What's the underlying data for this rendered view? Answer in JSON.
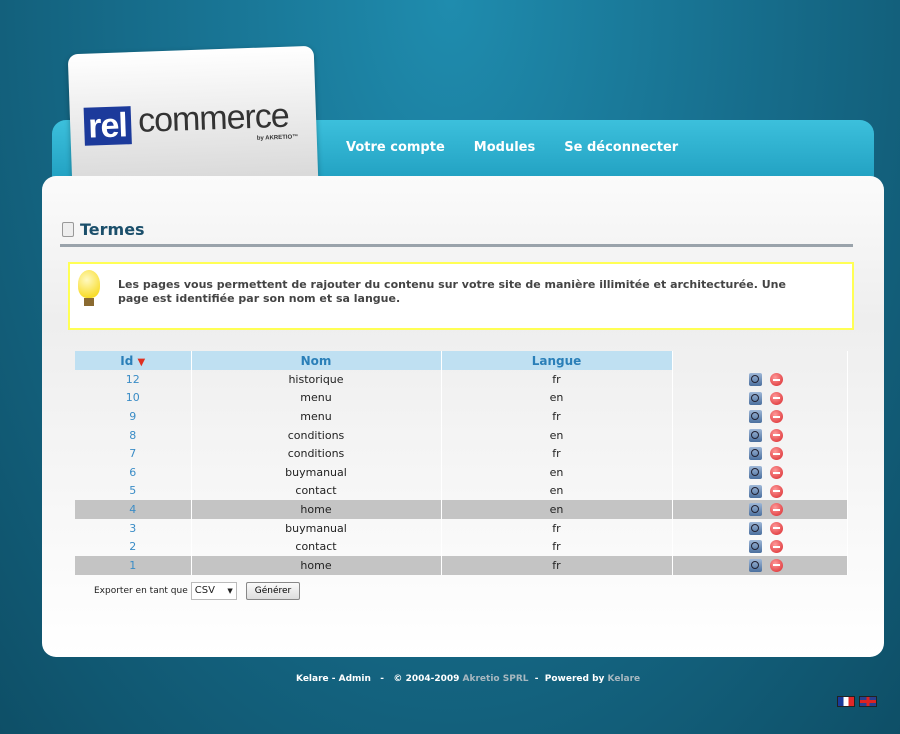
{
  "brand": {
    "logo_part1": "rel",
    "logo_part2": "commerce",
    "logo_by": "by AKRETIO™",
    "accent": "#1c3a9b"
  },
  "nav": {
    "items": [
      "Votre compte",
      "Modules",
      "Se déconnecter"
    ]
  },
  "page": {
    "title": "Termes",
    "info": "Les pages vous permettent de rajouter du contenu sur votre site de manière illimitée et architecturée. Une page est identifiée par son nom et sa langue."
  },
  "table": {
    "headers": {
      "id": "Id",
      "nom": "Nom",
      "langue": "Langue"
    },
    "sort": "Id descending",
    "rows": [
      {
        "id": "12",
        "nom": "historique",
        "langue": "fr",
        "highlight": false
      },
      {
        "id": "10",
        "nom": "menu",
        "langue": "en",
        "highlight": false
      },
      {
        "id": "9",
        "nom": "menu",
        "langue": "fr",
        "highlight": false
      },
      {
        "id": "8",
        "nom": "conditions",
        "langue": "en",
        "highlight": false
      },
      {
        "id": "7",
        "nom": "conditions",
        "langue": "fr",
        "highlight": false
      },
      {
        "id": "6",
        "nom": "buymanual",
        "langue": "en",
        "highlight": false
      },
      {
        "id": "5",
        "nom": "contact",
        "langue": "en",
        "highlight": false
      },
      {
        "id": "4",
        "nom": "home",
        "langue": "en",
        "highlight": true
      },
      {
        "id": "3",
        "nom": "buymanual",
        "langue": "fr",
        "highlight": false
      },
      {
        "id": "2",
        "nom": "contact",
        "langue": "fr",
        "highlight": false
      },
      {
        "id": "1",
        "nom": "home",
        "langue": "fr",
        "highlight": true
      }
    ],
    "actions": [
      "view-icon",
      "delete-icon"
    ]
  },
  "export": {
    "label": "Exporter en tant que",
    "format": "CSV",
    "button": "Générer"
  },
  "footer": {
    "part1": "Kelare - Admin   -   © 2004-2009 ",
    "company": "Akretio SPRL",
    "part2": "  -  Powered by ",
    "powered": "Kelare"
  },
  "languages": [
    "fr",
    "en"
  ]
}
